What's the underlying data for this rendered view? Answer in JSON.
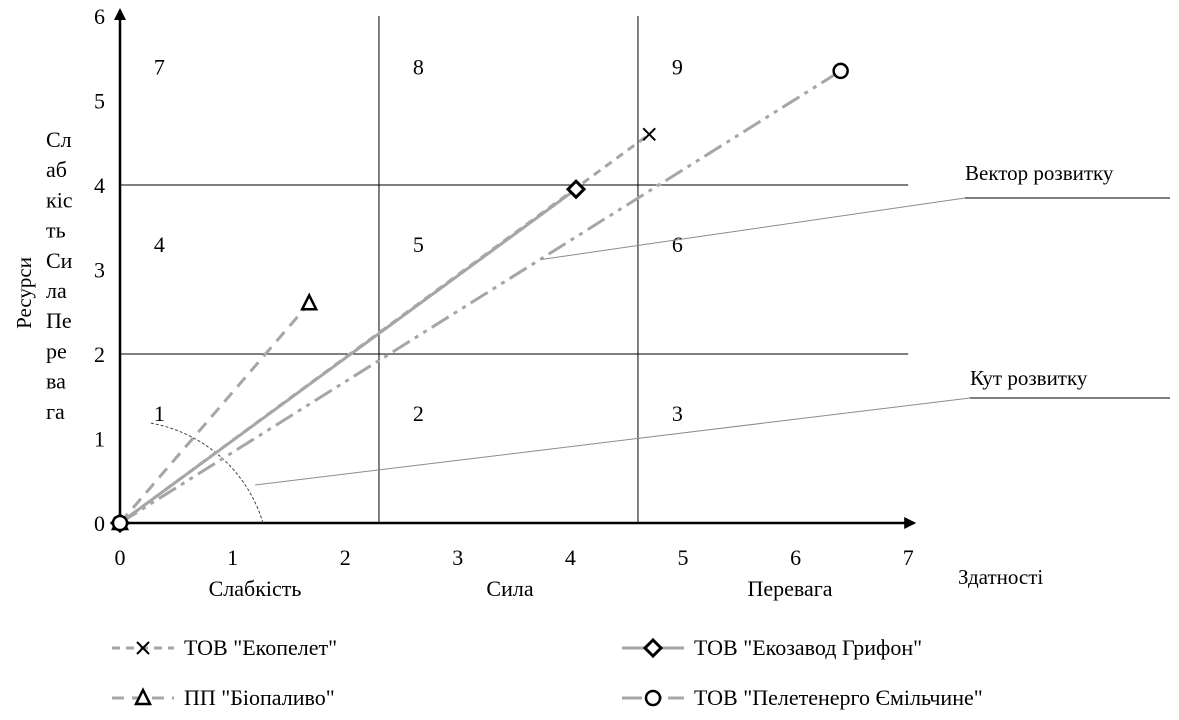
{
  "chart_data": {
    "type": "scatter",
    "title": "",
    "xlabel": "Здатності",
    "ylabel": "Ресурси",
    "xlim": [
      0,
      7
    ],
    "ylim": [
      0,
      6
    ],
    "x_ticks": [
      0,
      1,
      2,
      3,
      4,
      5,
      6,
      7
    ],
    "y_ticks": [
      0,
      1,
      2,
      3,
      4,
      5,
      6
    ],
    "grid_x": [
      2.3,
      4.6
    ],
    "grid_y": [
      2,
      4
    ],
    "x_zone_labels": [
      "Слабкість",
      "Сила",
      "Перевага"
    ],
    "y_zone_letters": [
      "Сл",
      "аб",
      "кіс",
      "ть",
      "Си",
      "ла",
      "Пе",
      "ре",
      "ва",
      "га"
    ],
    "cells": [
      {
        "label": "1",
        "x": 0.35,
        "y": 1.3
      },
      {
        "label": "2",
        "x": 2.65,
        "y": 1.3
      },
      {
        "label": "3",
        "x": 4.95,
        "y": 1.3
      },
      {
        "label": "4",
        "x": 0.35,
        "y": 3.3
      },
      {
        "label": "5",
        "x": 2.65,
        "y": 3.3
      },
      {
        "label": "6",
        "x": 4.95,
        "y": 3.3
      },
      {
        "label": "7",
        "x": 0.35,
        "y": 5.4
      },
      {
        "label": "8",
        "x": 2.65,
        "y": 5.4
      },
      {
        "label": "9",
        "x": 4.95,
        "y": 5.4
      }
    ],
    "series": [
      {
        "name": "ТОВ \"Екопелет\"",
        "marker": "x",
        "dash": "8,6",
        "color": "#a6a6a6",
        "points": [
          [
            0,
            0
          ],
          [
            4.7,
            4.6
          ]
        ]
      },
      {
        "name": "ТОВ \"Екозавод Грифон\"",
        "marker": "diamond",
        "dash": "",
        "color": "#a6a6a6",
        "points": [
          [
            0,
            0
          ],
          [
            4.05,
            3.95
          ]
        ]
      },
      {
        "name": "ПП \"Біопаливо\"",
        "marker": "triangle",
        "dash": "12,8",
        "color": "#a6a6a6",
        "points": [
          [
            0,
            0
          ],
          [
            1.68,
            2.6
          ]
        ]
      },
      {
        "name": "ТОВ \"Пелетенерго Ємільчине\"",
        "marker": "circle",
        "dash": "20,6,4,6,4,6",
        "color": "#a6a6a6",
        "points": [
          [
            0,
            0
          ],
          [
            6.4,
            5.35
          ]
        ]
      }
    ],
    "annotations": [
      {
        "text": "Вектор розвитку",
        "target": [
          3.75,
          3.12
        ]
      },
      {
        "text": "Кут розвитку",
        "target": [
          1.2,
          0.45
        ]
      }
    ],
    "legend_position": "bottom",
    "grid": false
  }
}
